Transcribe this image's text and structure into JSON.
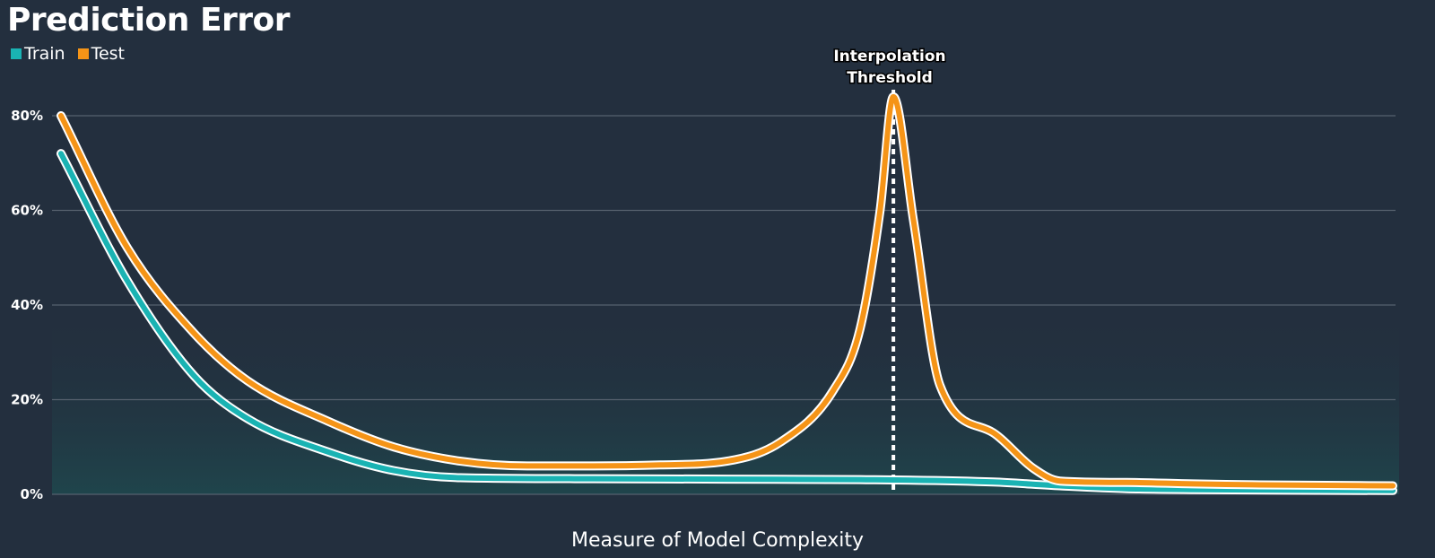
{
  "colors": {
    "background": "#232f3e",
    "train": "#1ab3b3",
    "test": "#f59417",
    "outline": "#ffffff",
    "gridline": "#56616e"
  },
  "chart_data": {
    "type": "line",
    "title": "Prediction Error",
    "xlabel": "Measure of Model Complexity",
    "ylabel": "",
    "xlim": [
      0,
      100
    ],
    "ylim": [
      0,
      90
    ],
    "yticks": [
      0,
      20,
      40,
      60,
      80
    ],
    "ytick_labels": [
      "0%",
      "20%",
      "40%",
      "60%",
      "80%"
    ],
    "legend_position": "top-left",
    "series": [
      {
        "name": "Train",
        "color": "#1ab3b3",
        "x": [
          0,
          5,
          10,
          14,
          20,
          25,
          30,
          40,
          50,
          60,
          70,
          75,
          80,
          85,
          100
        ],
        "y": [
          72,
          45,
          25,
          16,
          9,
          5,
          3.5,
          3.3,
          3.2,
          3.1,
          2.6,
          1.8,
          1.2,
          1.0,
          0.8
        ]
      },
      {
        "name": "Test",
        "color": "#f59417",
        "x": [
          0,
          5,
          10,
          14,
          20,
          25,
          30,
          35,
          40,
          45,
          50,
          54,
          58,
          60,
          61.5,
          62.5,
          64,
          66,
          70,
          73,
          75,
          80,
          85,
          90,
          100
        ],
        "y": [
          80,
          52,
          34,
          24,
          15.5,
          10,
          7,
          6,
          6,
          6.2,
          7,
          11,
          22,
          35,
          60,
          84,
          58,
          23,
          13,
          5.5,
          2.8,
          2.5,
          2.2,
          2.0,
          1.8
        ]
      }
    ],
    "annotations": [
      {
        "x": 62.5,
        "text_line1": "Interpolation",
        "text_line2": "Threshold",
        "style": "dotted-vertical-line"
      }
    ]
  }
}
